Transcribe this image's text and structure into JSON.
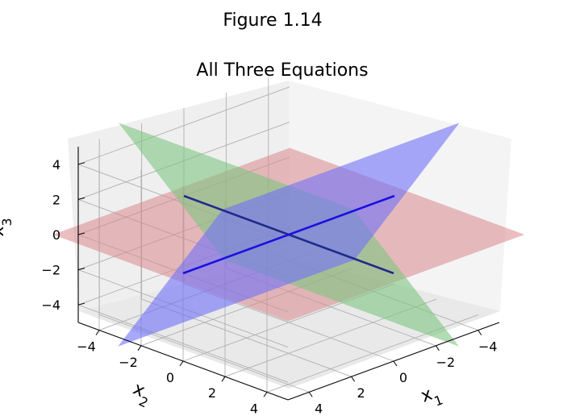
{
  "figure_title": "Figure 1.14",
  "chart_data": {
    "type": "3d-surface",
    "title": "All Three Equations",
    "xlabel": "x_1",
    "ylabel": "x_2",
    "zlabel": "x_3",
    "xlim": [
      -5,
      5
    ],
    "ylim": [
      -5,
      5
    ],
    "zlim": [
      -5,
      5
    ],
    "xticks": [
      "−4",
      "−2",
      "0",
      "2",
      "4"
    ],
    "yticks": [
      "−4",
      "−2",
      "0",
      "2",
      "4"
    ],
    "zticks": [
      "−4",
      "−2",
      "0",
      "2",
      "4"
    ],
    "grid": true,
    "view": {
      "elev_deg": 20,
      "azim_deg": 45
    },
    "series": [
      {
        "plane": "x3 = 0",
        "color": "#d9898c",
        "opacity": 0.55
      },
      {
        "plane": "x3 = 2*x1",
        "color": "#7fc481",
        "opacity": 0.6
      },
      {
        "plane": "x3 = 2*x2",
        "color": "#6f6ff9",
        "opacity": 0.6
      }
    ],
    "lines": [
      {
        "name": "intersection green/red",
        "from": [
          0,
          5,
          0
        ],
        "to": [
          0,
          -5,
          0
        ],
        "color": "#1f2a8a"
      },
      {
        "name": "intersection blue/red",
        "from": [
          5,
          0,
          0
        ],
        "to": [
          -5,
          0,
          0
        ],
        "color": "#1a10e0"
      }
    ]
  }
}
